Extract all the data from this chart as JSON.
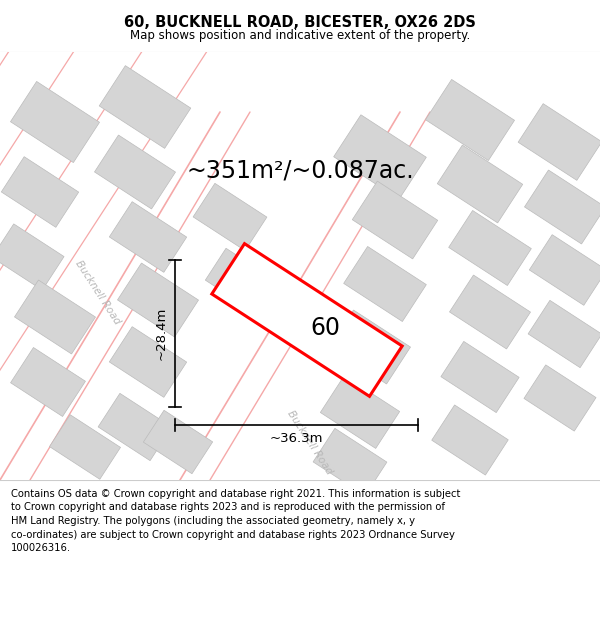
{
  "title": "60, BUCKNELL ROAD, BICESTER, OX26 2DS",
  "subtitle": "Map shows position and indicative extent of the property.",
  "area_text": "~351m²/~0.087ac.",
  "dim_width": "~36.3m",
  "dim_height": "~28.4m",
  "property_label": "60",
  "footer_text": "Contains OS data © Crown copyright and database right 2021. This information is subject to Crown copyright and database rights 2023 and is reproduced with the permission of HM Land Registry. The polygons (including the associated geometry, namely x, y co-ordinates) are subject to Crown copyright and database rights 2023 Ordnance Survey 100026316.",
  "title_fontsize": 10.5,
  "subtitle_fontsize": 8.5,
  "area_fontsize": 17,
  "label_fontsize": 17,
  "dim_fontsize": 9.5,
  "footer_fontsize": 7.2,
  "road_color": "#f5a8a8",
  "block_color": "#d5d5d5",
  "block_edge_color": "#bbbbbb",
  "map_bg_color": "#f7f7f7",
  "white": "#ffffff"
}
